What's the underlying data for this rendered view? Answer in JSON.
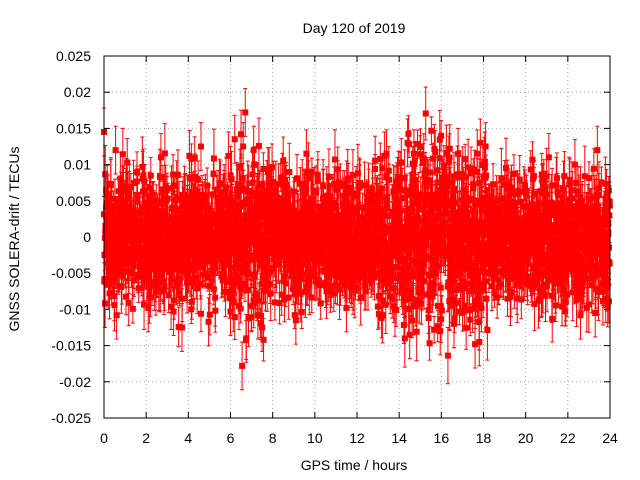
{
  "chart_data": {
    "type": "scatter",
    "title": "Day 120 of 2019",
    "xlabel": "GPS time / hours",
    "ylabel": "GNSS SOLERA-drift / TECUs",
    "xlim": [
      0,
      24
    ],
    "ylim": [
      -0.025,
      0.025
    ],
    "xticks": [
      "0",
      "2",
      "4",
      "6",
      "8",
      "10",
      "12",
      "14",
      "16",
      "18",
      "20",
      "22",
      "24"
    ],
    "yticks": [
      "-0.025",
      "-0.02",
      "-0.015",
      "-0.01",
      "-0.005",
      "0",
      "0.005",
      "0.01",
      "0.015",
      "0.02",
      "0.025"
    ],
    "grid": true,
    "marker": "square",
    "error_bars": true,
    "series_color": "#ff0000",
    "points_per_hour": 120,
    "typical_abs_value": 0.005,
    "typical_error": 0.003,
    "outliers": [
      [
        0.0,
        0.0145
      ],
      [
        0.05,
        -0.0092
      ],
      [
        0.55,
        0.012
      ],
      [
        0.6,
        -0.0108
      ],
      [
        1.1,
        0.0103
      ],
      [
        2.1,
        -0.0098
      ],
      [
        2.7,
        0.011
      ],
      [
        3.3,
        -0.0103
      ],
      [
        3.7,
        -0.0125
      ],
      [
        4.6,
        0.0125
      ],
      [
        5.9,
        0.0112
      ],
      [
        6.0,
        -0.0103
      ],
      [
        6.2,
        0.0135
      ],
      [
        6.4,
        -0.0095
      ],
      [
        6.5,
        0.0142
      ],
      [
        6.55,
        -0.0178
      ],
      [
        6.6,
        0.0125
      ],
      [
        6.7,
        0.0172
      ],
      [
        6.75,
        -0.014
      ],
      [
        7.1,
        0.012
      ],
      [
        7.3,
        -0.0108
      ],
      [
        7.5,
        -0.0125
      ],
      [
        8.5,
        0.0105
      ],
      [
        9.1,
        -0.0115
      ],
      [
        9.6,
        0.0115
      ],
      [
        11.5,
        -0.0098
      ],
      [
        13.3,
        0.0112
      ],
      [
        13.4,
        0.0115
      ],
      [
        14.1,
        0.0103
      ],
      [
        14.4,
        0.013
      ],
      [
        14.5,
        -0.0135
      ],
      [
        14.7,
        0.0115
      ],
      [
        15.4,
        -0.0112
      ],
      [
        16.4,
        0.0122
      ],
      [
        16.6,
        -0.012
      ],
      [
        17.6,
        -0.0148
      ],
      [
        17.7,
        0.0115
      ],
      [
        17.8,
        -0.0145
      ],
      [
        17.85,
        0.013
      ],
      [
        17.9,
        -0.0098
      ],
      [
        18.1,
        0.0125
      ],
      [
        19.6,
        -0.0085
      ],
      [
        21.1,
        0.011
      ],
      [
        21.9,
        -0.009
      ],
      [
        22.6,
        -0.0108
      ],
      [
        22.9,
        -0.0098
      ],
      [
        23.3,
        -0.0105
      ],
      [
        23.4,
        0.012
      ],
      [
        23.8,
        -0.0085
      ]
    ]
  }
}
